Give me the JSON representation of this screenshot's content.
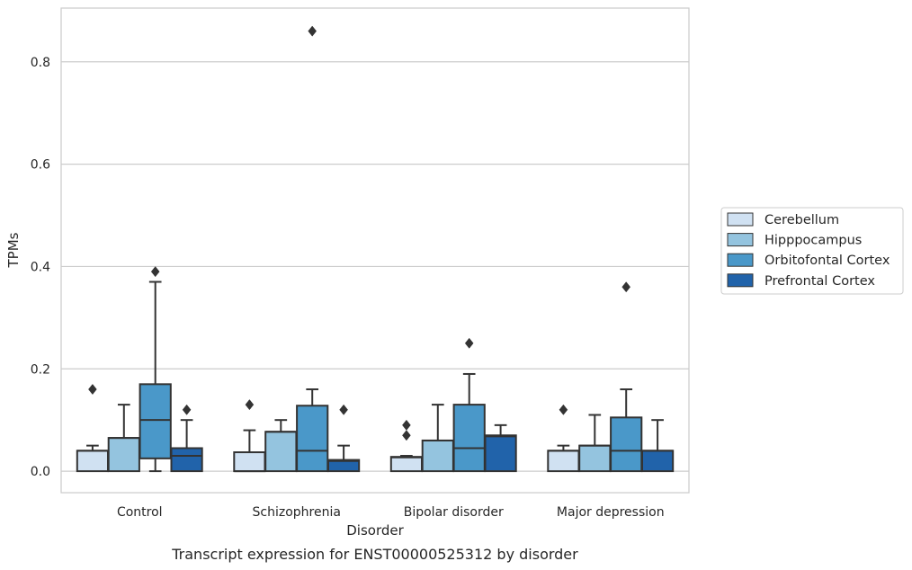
{
  "chart_data": {
    "type": "box",
    "caption": "Transcript expression for ENST00000525312 by disorder",
    "xlabel": "Disorder",
    "ylabel": "TPMs",
    "ylim": [
      -0.042,
      0.905
    ],
    "yticks": [
      0.0,
      0.2,
      0.4,
      0.6,
      0.8
    ],
    "ytick_labels": [
      "0.0",
      "0.2",
      "0.4",
      "0.6",
      "0.8"
    ],
    "categories": [
      "Control",
      "Schizophrenia",
      "Bipolar disorder",
      "Major depression"
    ],
    "grid": "horizontal",
    "legend_position": "right",
    "series": [
      {
        "name": "Cerebellum",
        "color": "#d0e1f2",
        "boxes": [
          {
            "whislo": 0.0,
            "q1": 0.0,
            "med": 0.04,
            "q3": 0.04,
            "whishi": 0.05,
            "fliers": [
              0.16
            ]
          },
          {
            "whislo": 0.0,
            "q1": 0.0,
            "med": 0.0,
            "q3": 0.037,
            "whishi": 0.08,
            "fliers": [
              0.13
            ]
          },
          {
            "whislo": 0.0,
            "q1": 0.0,
            "med": 0.027,
            "q3": 0.028,
            "whishi": 0.03,
            "fliers": [
              0.07,
              0.09
            ]
          },
          {
            "whislo": 0.0,
            "q1": 0.0,
            "med": 0.04,
            "q3": 0.04,
            "whishi": 0.05,
            "fliers": [
              0.12
            ]
          }
        ]
      },
      {
        "name": "Hipppocampus",
        "color": "#94c4df",
        "boxes": [
          {
            "whislo": 0.0,
            "q1": 0.0,
            "med": 0.065,
            "q3": 0.065,
            "whishi": 0.13,
            "fliers": []
          },
          {
            "whislo": 0.0,
            "q1": 0.0,
            "med": 0.077,
            "q3": 0.077,
            "whishi": 0.1,
            "fliers": []
          },
          {
            "whislo": 0.0,
            "q1": 0.0,
            "med": 0.06,
            "q3": 0.06,
            "whishi": 0.13,
            "fliers": []
          },
          {
            "whislo": 0.0,
            "q1": 0.0,
            "med": 0.05,
            "q3": 0.05,
            "whishi": 0.11,
            "fliers": []
          }
        ]
      },
      {
        "name": "Orbitofontal Cortex",
        "color": "#4a98c9",
        "boxes": [
          {
            "whislo": 0.0,
            "q1": 0.025,
            "med": 0.1,
            "q3": 0.17,
            "whishi": 0.37,
            "fliers": [
              0.39
            ]
          },
          {
            "whislo": 0.0,
            "q1": 0.0,
            "med": 0.04,
            "q3": 0.128,
            "whishi": 0.16,
            "fliers": [
              0.86
            ]
          },
          {
            "whislo": 0.0,
            "q1": 0.0,
            "med": 0.045,
            "q3": 0.13,
            "whishi": 0.19,
            "fliers": [
              0.25
            ]
          },
          {
            "whislo": 0.0,
            "q1": 0.0,
            "med": 0.04,
            "q3": 0.105,
            "whishi": 0.16,
            "fliers": [
              0.36
            ]
          }
        ]
      },
      {
        "name": "Prefrontal Cortex",
        "color": "#2163aa",
        "boxes": [
          {
            "whislo": 0.0,
            "q1": 0.0,
            "med": 0.03,
            "q3": 0.045,
            "whishi": 0.1,
            "fliers": [
              0.12
            ]
          },
          {
            "whislo": 0.0,
            "q1": 0.0,
            "med": 0.02,
            "q3": 0.022,
            "whishi": 0.05,
            "fliers": [
              0.12
            ]
          },
          {
            "whislo": 0.0,
            "q1": 0.0,
            "med": 0.068,
            "q3": 0.07,
            "whishi": 0.09,
            "fliers": []
          },
          {
            "whislo": 0.0,
            "q1": 0.0,
            "med": 0.04,
            "q3": 0.04,
            "whishi": 0.1,
            "fliers": []
          }
        ]
      }
    ]
  }
}
